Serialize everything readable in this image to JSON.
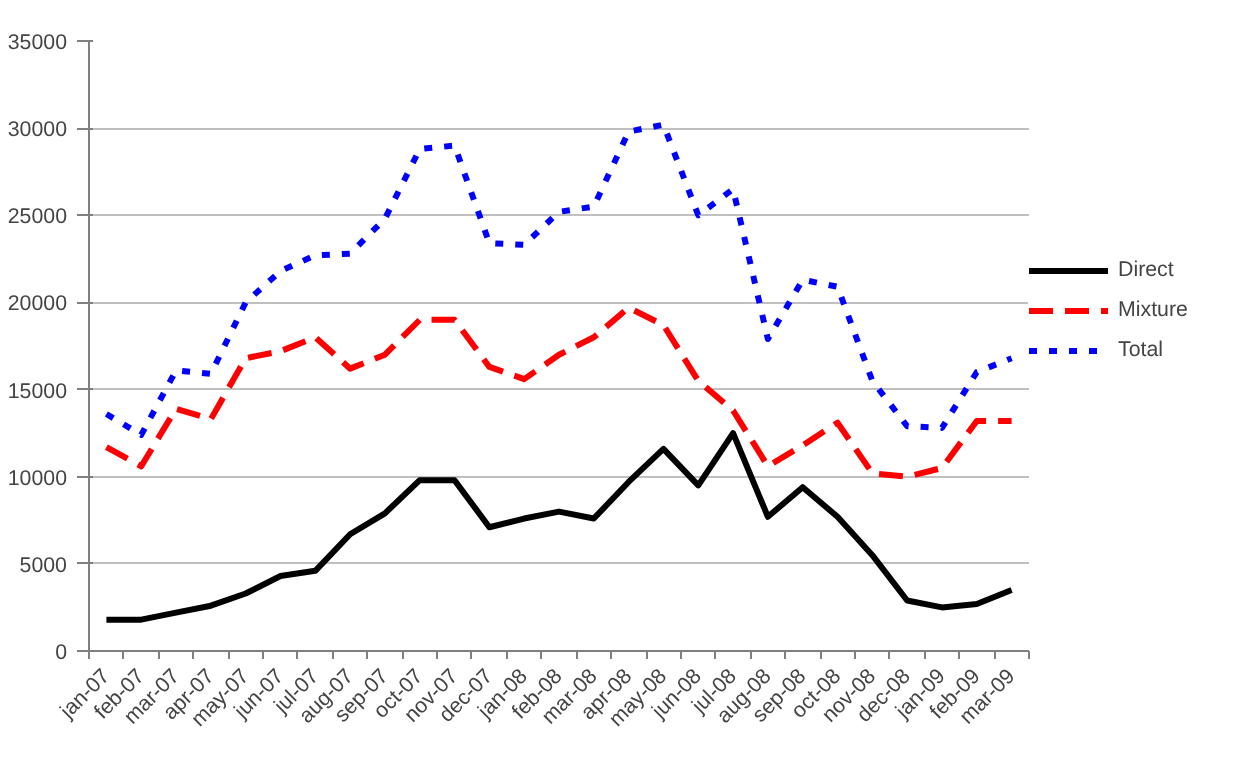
{
  "chart_data": {
    "type": "line",
    "categories": [
      "jan-07",
      "feb-07",
      "mar-07",
      "apr-07",
      "may-07",
      "jun-07",
      "jul-07",
      "aug-07",
      "sep-07",
      "oct-07",
      "nov-07",
      "dec-07",
      "jan-08",
      "feb-08",
      "mar-08",
      "apr-08",
      "may-08",
      "jun-08",
      "jul-08",
      "aug-08",
      "sep-08",
      "oct-08",
      "nov-08",
      "dec-08",
      "jan-09",
      "feb-09",
      "mar-09"
    ],
    "series": [
      {
        "name": "Direct",
        "color": "#000000",
        "line_style": "solid",
        "values": [
          1800,
          1800,
          2200,
          2600,
          3300,
          4300,
          4600,
          6700,
          7900,
          9800,
          9800,
          7100,
          7600,
          8000,
          7600,
          9700,
          11600,
          9500,
          12500,
          7700,
          9400,
          7700,
          5500,
          2900,
          2500,
          2700,
          3500
        ]
      },
      {
        "name": "Mixture",
        "color": "#ff0000",
        "line_style": "dashed",
        "values": [
          11700,
          10600,
          13900,
          13300,
          16800,
          17200,
          18000,
          16200,
          17000,
          19000,
          19000,
          16300,
          15600,
          17000,
          18000,
          19700,
          18700,
          15500,
          13800,
          10600,
          11800,
          13100,
          10200,
          10000,
          10500,
          13200,
          13200
        ]
      },
      {
        "name": "Total",
        "color": "#0000ff",
        "line_style": "dotted",
        "values": [
          13600,
          12400,
          16100,
          15900,
          20000,
          21800,
          22700,
          22800,
          24800,
          28800,
          29000,
          23400,
          23300,
          25200,
          25500,
          29800,
          30200,
          25000,
          26500,
          17900,
          21300,
          20900,
          15500,
          12900,
          12800,
          16000,
          16800
        ]
      }
    ],
    "ylim": [
      0,
      35000
    ],
    "yticks": [
      0,
      5000,
      10000,
      15000,
      20000,
      25000,
      30000,
      35000
    ],
    "grid": "y",
    "legend": "right"
  }
}
